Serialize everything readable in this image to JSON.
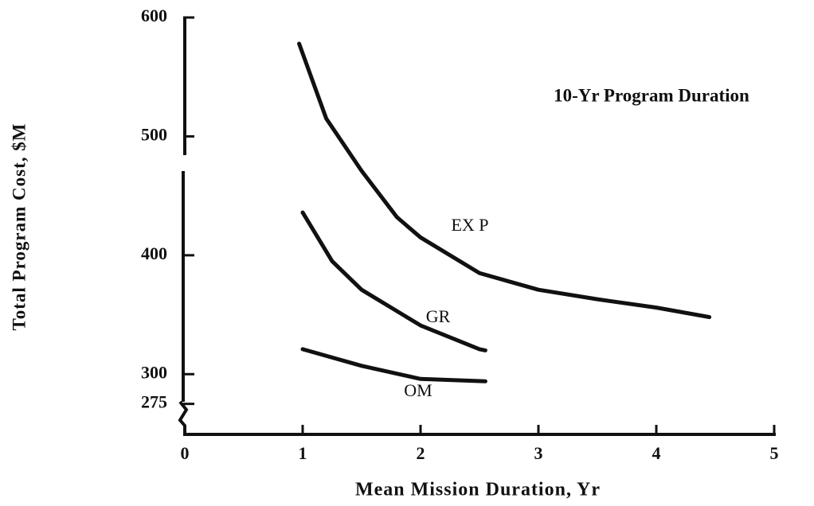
{
  "chart_data": {
    "type": "line",
    "annotation": "10-Yr Program Duration",
    "x_label": "Mean Mission Duration,  Yr",
    "y_label": "Total Program Cost,  $M",
    "xlim": [
      0,
      5
    ],
    "xticks": [
      0,
      1,
      2,
      3,
      4,
      5
    ],
    "ylim": [
      250,
      600
    ],
    "yticks": [
      275,
      300,
      400,
      500,
      600
    ],
    "series": [
      {
        "name": "EX P",
        "color": "#111111",
        "x": [
          0.97,
          1.2,
          1.5,
          1.8,
          2.0,
          2.5,
          3.0,
          3.5,
          4.0,
          4.45
        ],
        "values": [
          578,
          515,
          471,
          432,
          415,
          385,
          371,
          363,
          356,
          348
        ]
      },
      {
        "name": "GR",
        "color": "#111111",
        "x": [
          1.0,
          1.25,
          1.5,
          2.0,
          2.5,
          2.55
        ],
        "values": [
          436,
          395,
          371,
          341,
          321,
          320
        ]
      },
      {
        "name": "OM",
        "color": "#111111",
        "x": [
          1.0,
          1.5,
          2.0,
          2.55
        ],
        "values": [
          321,
          307,
          296,
          294
        ]
      }
    ]
  }
}
